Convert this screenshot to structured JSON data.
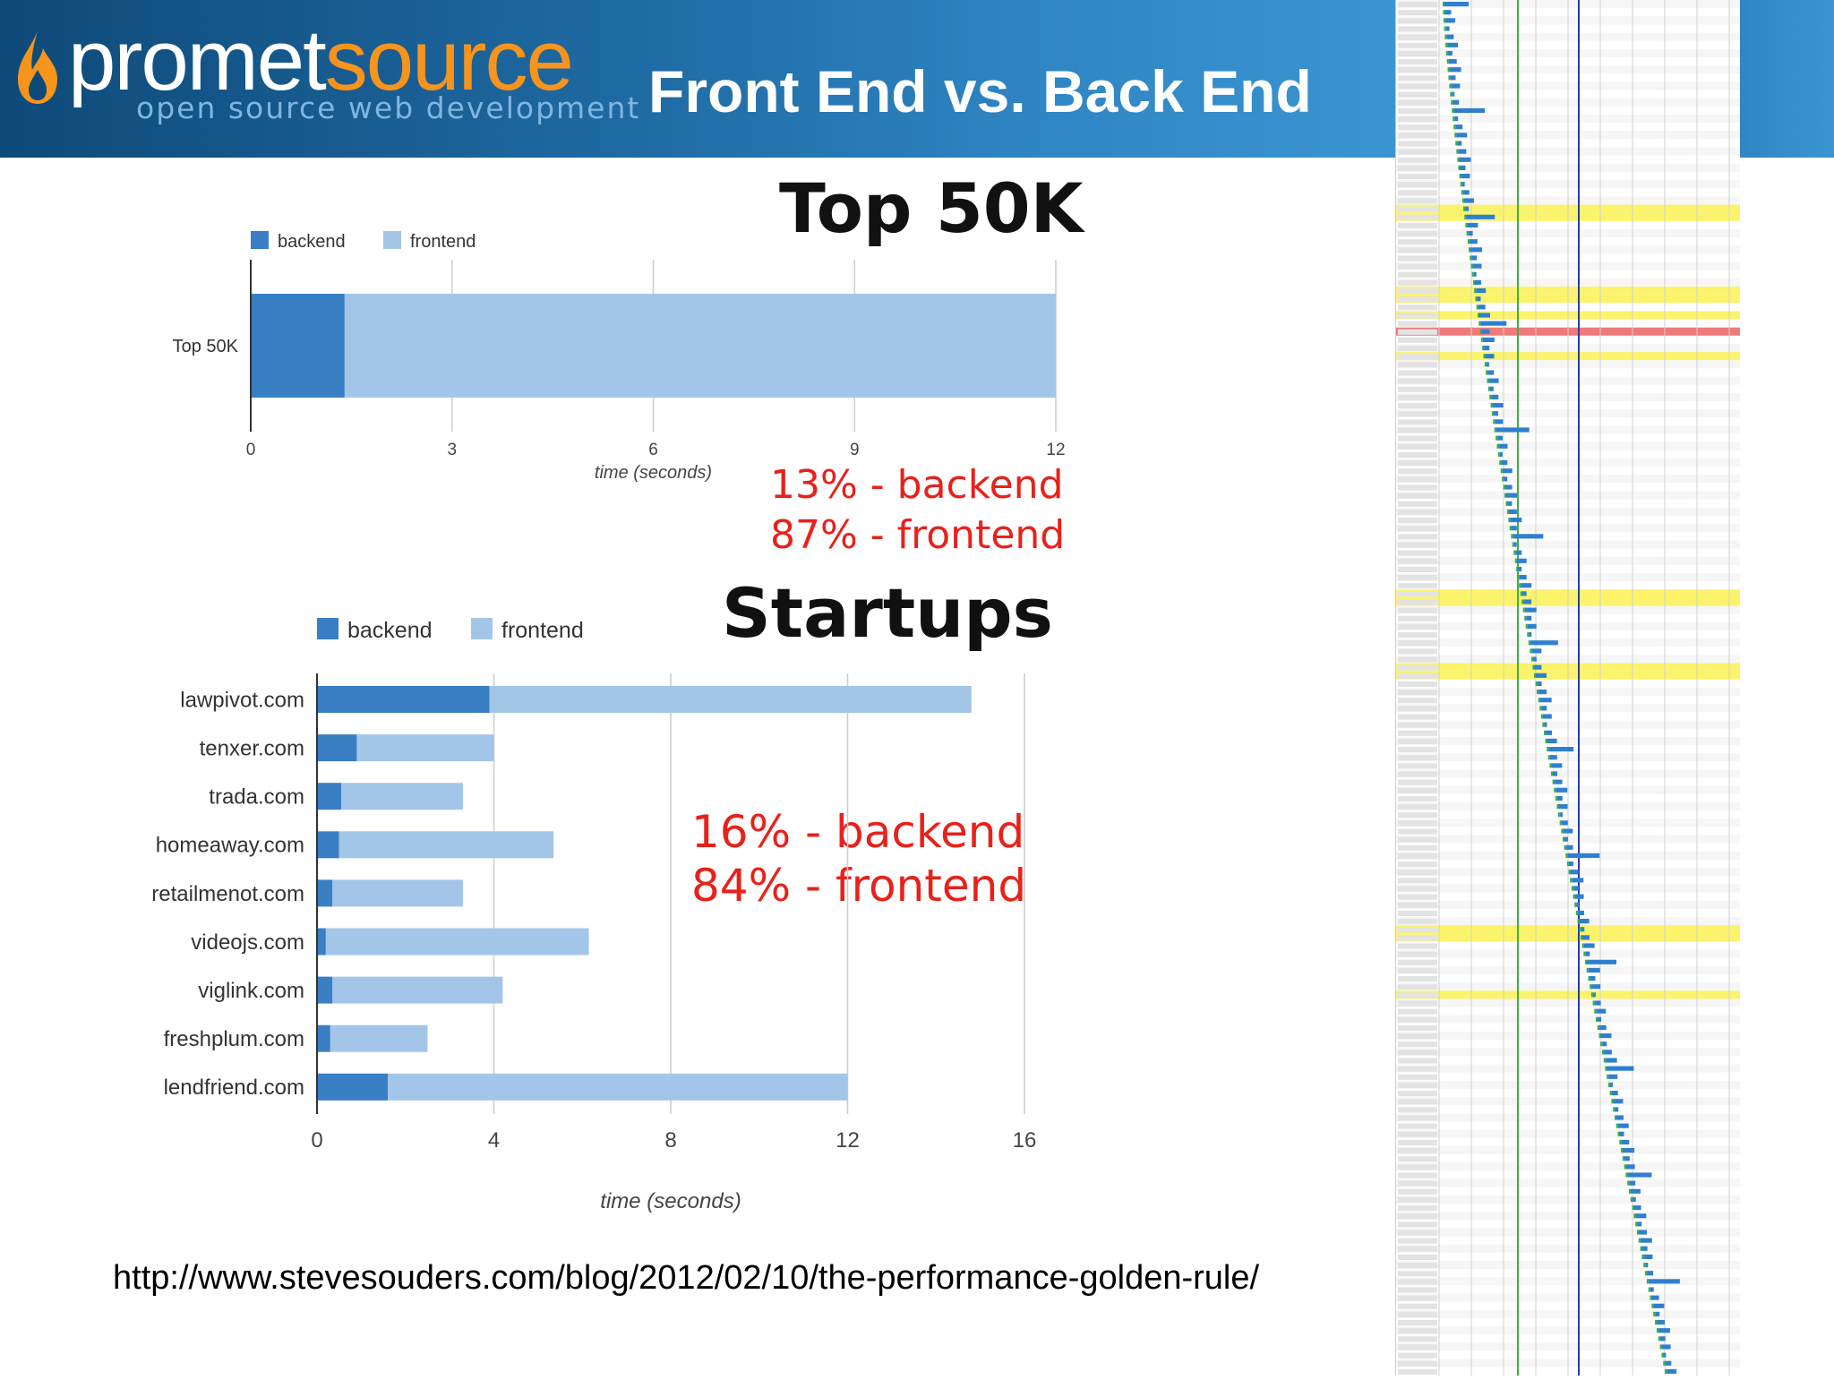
{
  "header": {
    "logo_word_1": "promet",
    "logo_word_2": "source",
    "logo_tagline": "open source web development",
    "title": "Front End vs. Back End"
  },
  "colors": {
    "backend": "#3a7fc4",
    "frontend": "#a3c6e8",
    "highlight_red": "#e8211b",
    "logo_orange": "#f7941d"
  },
  "top_chart": {
    "heading": "Top 50K",
    "summary_backend": "13% - backend",
    "summary_frontend": "87% - frontend"
  },
  "startups_chart": {
    "heading": "Startups",
    "summary_backend": "16% - backend",
    "summary_frontend": "84% - frontend"
  },
  "source_url": "http://www.stevesouders.com/blog/2012/02/10/the-performance-golden-rule/",
  "chart_data": [
    {
      "type": "bar",
      "orientation": "horizontal",
      "stacked": true,
      "categories": [
        "Top 50K"
      ],
      "series": [
        {
          "name": "backend",
          "values": [
            1.4
          ]
        },
        {
          "name": "frontend",
          "values": [
            10.6
          ]
        }
      ],
      "xlabel": "time (seconds)",
      "xlim": [
        0,
        12
      ],
      "xticks": [
        0,
        3,
        6,
        9,
        12
      ],
      "legend": "top-left",
      "grid": true
    },
    {
      "type": "bar",
      "orientation": "horizontal",
      "stacked": true,
      "categories": [
        "lawpivot.com",
        "tenxer.com",
        "trada.com",
        "homeaway.com",
        "retailmenot.com",
        "videojs.com",
        "viglink.com",
        "freshplum.com",
        "lendfriend.com"
      ],
      "series": [
        {
          "name": "backend",
          "values": [
            3.9,
            0.9,
            0.55,
            0.5,
            0.35,
            0.2,
            0.35,
            0.3,
            1.6
          ]
        },
        {
          "name": "frontend",
          "values": [
            10.9,
            3.1,
            2.75,
            4.85,
            2.95,
            5.95,
            3.85,
            2.2,
            10.4
          ]
        }
      ],
      "xlabel": "time (seconds)",
      "xlim": [
        0,
        16
      ],
      "xticks": [
        0,
        4,
        8,
        12,
        16
      ],
      "legend": "top-left",
      "grid": true
    }
  ]
}
